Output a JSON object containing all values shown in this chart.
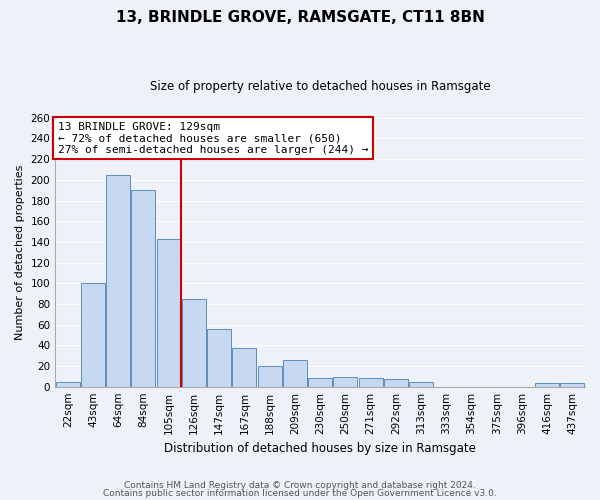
{
  "title": "13, BRINDLE GROVE, RAMSGATE, CT11 8BN",
  "subtitle": "Size of property relative to detached houses in Ramsgate",
  "xlabel": "Distribution of detached houses by size in Ramsgate",
  "ylabel": "Number of detached properties",
  "bar_color": "#c6d9f0",
  "bar_edge_color": "#5a8fc2",
  "categories": [
    "22sqm",
    "43sqm",
    "64sqm",
    "84sqm",
    "105sqm",
    "126sqm",
    "147sqm",
    "167sqm",
    "188sqm",
    "209sqm",
    "230sqm",
    "250sqm",
    "271sqm",
    "292sqm",
    "313sqm",
    "333sqm",
    "354sqm",
    "375sqm",
    "396sqm",
    "416sqm",
    "437sqm"
  ],
  "values": [
    5,
    100,
    205,
    190,
    143,
    85,
    56,
    37,
    20,
    26,
    8,
    9,
    8,
    7,
    5,
    0,
    0,
    0,
    0,
    4,
    4
  ],
  "ylim": [
    0,
    260
  ],
  "yticks": [
    0,
    20,
    40,
    60,
    80,
    100,
    120,
    140,
    160,
    180,
    200,
    220,
    240,
    260
  ],
  "property_vline_color": "#cc0000",
  "annotation_title": "13 BRINDLE GROVE: 129sqm",
  "annotation_line1": "← 72% of detached houses are smaller (650)",
  "annotation_line2": "27% of semi-detached houses are larger (244) →",
  "annotation_box_color": "white",
  "annotation_box_edge": "#cc0000",
  "footer1": "Contains HM Land Registry data © Crown copyright and database right 2024.",
  "footer2": "Contains public sector information licensed under the Open Government Licence v3.0.",
  "background_color": "#eef2f8",
  "grid_color": "#ffffff",
  "title_fontsize": 11,
  "subtitle_fontsize": 8.5,
  "ylabel_fontsize": 8,
  "xlabel_fontsize": 8.5,
  "tick_fontsize": 7.5,
  "footer_fontsize": 6.5
}
